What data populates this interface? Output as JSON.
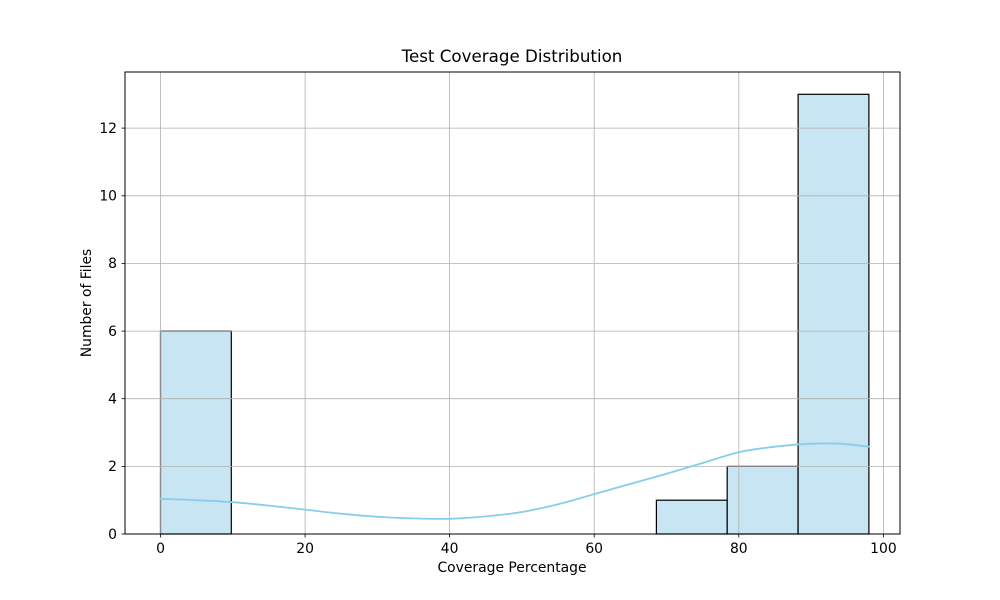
{
  "chart_data": {
    "type": "histogram",
    "title": "Test Coverage Distribution",
    "xlabel": "Coverage Percentage",
    "ylabel": "Number of Files",
    "x_ticks": [
      0,
      20,
      40,
      60,
      80,
      100
    ],
    "y_ticks": [
      0,
      2,
      4,
      6,
      8,
      10,
      12
    ],
    "xlim": [
      -4.91,
      102.3
    ],
    "ylim": [
      0,
      13.66
    ],
    "grid": true,
    "bin_width": 9.8,
    "bars": [
      {
        "x0": 0,
        "x1": 9.8,
        "count": 6
      },
      {
        "x0": 68.6,
        "x1": 78.4,
        "count": 1
      },
      {
        "x0": 78.4,
        "x1": 88.2,
        "count": 2
      },
      {
        "x0": 88.2,
        "x1": 98,
        "count": 13
      }
    ],
    "kde_curve": [
      [
        0,
        1.04
      ],
      [
        5,
        1.0
      ],
      [
        10,
        0.94
      ],
      [
        15,
        0.84
      ],
      [
        20,
        0.72
      ],
      [
        25,
        0.6
      ],
      [
        30,
        0.51
      ],
      [
        35,
        0.46
      ],
      [
        40,
        0.45
      ],
      [
        45,
        0.52
      ],
      [
        50,
        0.65
      ],
      [
        55,
        0.88
      ],
      [
        60,
        1.18
      ],
      [
        65,
        1.48
      ],
      [
        70,
        1.78
      ],
      [
        75,
        2.1
      ],
      [
        80,
        2.42
      ],
      [
        85,
        2.58
      ],
      [
        90,
        2.67
      ],
      [
        94,
        2.67
      ],
      [
        98,
        2.58
      ]
    ],
    "legend": null,
    "colors": {
      "background": "#ffffff",
      "bar_fill": "#c8e5f3",
      "bar_edge": "#000000",
      "kde_line": "#87ceeb",
      "grid": "#b0b0b0",
      "spine": "#000000",
      "text": "#000000"
    }
  }
}
